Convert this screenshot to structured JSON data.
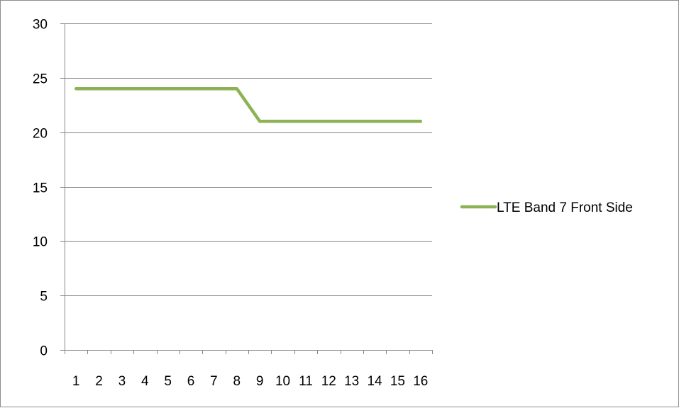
{
  "chart_data": {
    "type": "line",
    "title": "",
    "xlabel": "",
    "ylabel": "",
    "x": [
      "1",
      "2",
      "3",
      "4",
      "5",
      "6",
      "7",
      "8",
      "9",
      "10",
      "11",
      "12",
      "13",
      "14",
      "15",
      "16"
    ],
    "ylim": [
      0,
      30
    ],
    "yticks": [
      0,
      5,
      10,
      15,
      20,
      25,
      30
    ],
    "grid": true,
    "legend_position": "right",
    "series": [
      {
        "name": "LTE Band 7 Front Side",
        "color": "#8db255",
        "values": [
          24,
          24,
          24,
          24,
          24,
          24,
          24,
          24,
          21,
          21,
          21,
          21,
          21,
          21,
          21,
          21
        ]
      }
    ]
  }
}
